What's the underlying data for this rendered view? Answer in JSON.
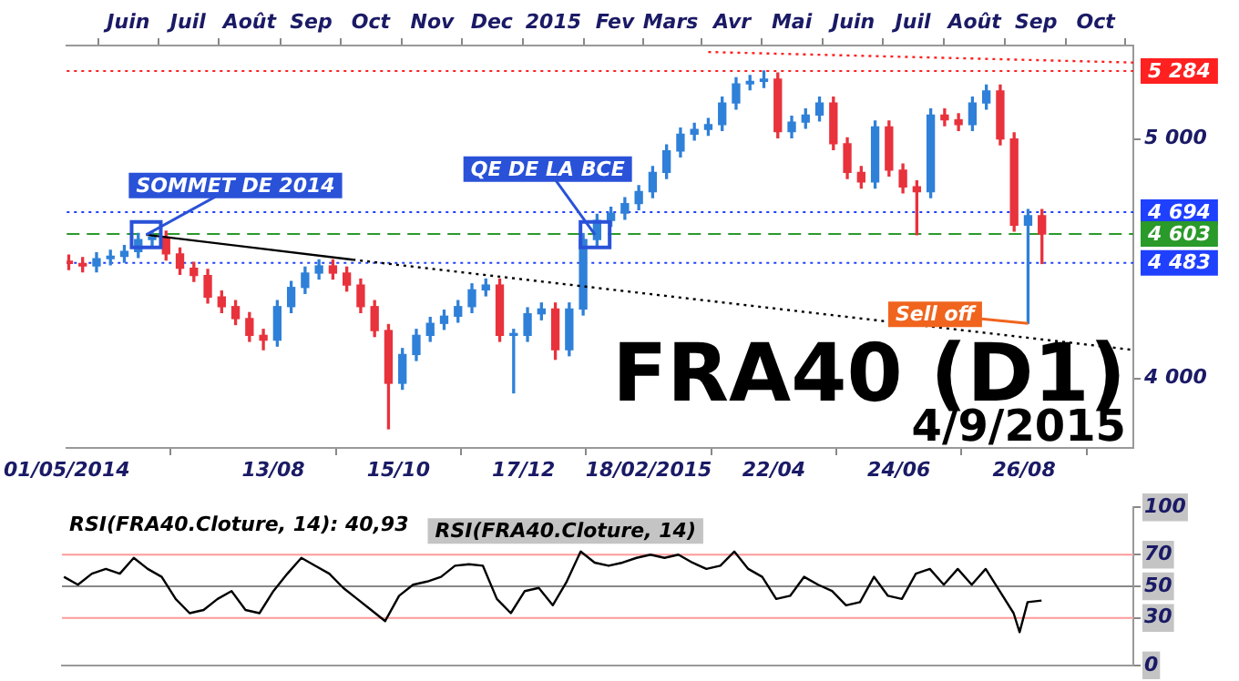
{
  "chart_data": [
    {
      "type": "candlestick",
      "title": "FRA40 (D1)",
      "subtitle": "4/9/2015",
      "x": [
        "2014-05-02",
        "2014-05-09",
        "2014-05-16",
        "2014-05-23",
        "2014-05-30",
        "2014-06-06",
        "2014-06-13",
        "2014-06-20",
        "2014-06-27",
        "2014-07-04",
        "2014-07-11",
        "2014-07-18",
        "2014-07-25",
        "2014-08-01",
        "2014-08-08",
        "2014-08-15",
        "2014-08-22",
        "2014-08-29",
        "2014-09-05",
        "2014-09-12",
        "2014-09-19",
        "2014-09-26",
        "2014-10-03",
        "2014-10-10",
        "2014-10-17",
        "2014-10-24",
        "2014-10-31",
        "2014-11-07",
        "2014-11-14",
        "2014-11-21",
        "2014-11-28",
        "2014-12-05",
        "2014-12-12",
        "2014-12-19",
        "2014-12-26",
        "2015-01-02",
        "2015-01-09",
        "2015-01-16",
        "2015-01-23",
        "2015-01-30",
        "2015-02-06",
        "2015-02-13",
        "2015-02-20",
        "2015-02-27",
        "2015-03-06",
        "2015-03-13",
        "2015-03-20",
        "2015-03-27",
        "2015-04-03",
        "2015-04-10",
        "2015-04-17",
        "2015-04-24",
        "2015-05-01",
        "2015-05-08",
        "2015-05-15",
        "2015-05-22",
        "2015-05-29",
        "2015-06-05",
        "2015-06-12",
        "2015-06-19",
        "2015-06-26",
        "2015-07-03",
        "2015-07-10",
        "2015-07-17",
        "2015-07-24",
        "2015-07-31",
        "2015-08-07",
        "2015-08-14",
        "2015-08-21",
        "2015-08-28",
        "2015-09-04"
      ],
      "ohlc": [
        [
          4490,
          4515,
          4455,
          4480
        ],
        [
          4480,
          4505,
          4445,
          4470
        ],
        [
          4470,
          4525,
          4445,
          4500
        ],
        [
          4500,
          4535,
          4475,
          4510
        ],
        [
          4510,
          4555,
          4485,
          4530
        ],
        [
          4530,
          4605,
          4505,
          4580
        ],
        [
          4580,
          4615,
          4555,
          4590
        ],
        [
          4590,
          4615,
          4495,
          4520
        ],
        [
          4520,
          4545,
          4435,
          4460
        ],
        [
          4460,
          4485,
          4405,
          4430
        ],
        [
          4430,
          4455,
          4315,
          4340
        ],
        [
          4340,
          4365,
          4275,
          4300
        ],
        [
          4300,
          4325,
          4225,
          4250
        ],
        [
          4250,
          4275,
          4155,
          4180
        ],
        [
          4180,
          4205,
          4120,
          4160
        ],
        [
          4160,
          4325,
          4135,
          4300
        ],
        [
          4300,
          4405,
          4275,
          4380
        ],
        [
          4380,
          4465,
          4355,
          4440
        ],
        [
          4440,
          4495,
          4415,
          4470
        ],
        [
          4470,
          4495,
          4415,
          4440
        ],
        [
          4440,
          4465,
          4365,
          4390
        ],
        [
          4390,
          4415,
          4275,
          4300
        ],
        [
          4300,
          4325,
          4175,
          4200
        ],
        [
          4200,
          4225,
          3790,
          3980
        ],
        [
          3980,
          4125,
          3955,
          4100
        ],
        [
          4100,
          4205,
          4075,
          4180
        ],
        [
          4180,
          4255,
          4155,
          4230
        ],
        [
          4230,
          4285,
          4205,
          4260
        ],
        [
          4260,
          4325,
          4235,
          4300
        ],
        [
          4300,
          4395,
          4275,
          4370
        ],
        [
          4370,
          4415,
          4345,
          4390
        ],
        [
          4390,
          4415,
          4155,
          4180
        ],
        [
          4180,
          4205,
          3940,
          4180
        ],
        [
          4180,
          4295,
          4155,
          4270
        ],
        [
          4270,
          4315,
          4245,
          4290
        ],
        [
          4290,
          4315,
          4080,
          4120
        ],
        [
          4120,
          4315,
          4095,
          4290
        ],
        [
          4290,
          4605,
          4265,
          4580
        ],
        [
          4580,
          4685,
          4555,
          4660
        ],
        [
          4660,
          4715,
          4635,
          4690
        ],
        [
          4690,
          4755,
          4665,
          4730
        ],
        [
          4730,
          4805,
          4705,
          4780
        ],
        [
          4780,
          4885,
          4755,
          4860
        ],
        [
          4860,
          4975,
          4835,
          4950
        ],
        [
          4950,
          5045,
          4925,
          5020
        ],
        [
          5020,
          5065,
          4995,
          5040
        ],
        [
          5040,
          5085,
          5015,
          5060
        ],
        [
          5060,
          5175,
          5035,
          5150
        ],
        [
          5150,
          5255,
          5125,
          5230
        ],
        [
          5230,
          5265,
          5205,
          5240
        ],
        [
          5240,
          5284,
          5215,
          5250
        ],
        [
          5250,
          5275,
          5005,
          5030
        ],
        [
          5030,
          5095,
          5005,
          5070
        ],
        [
          5070,
          5125,
          5045,
          5100
        ],
        [
          5100,
          5175,
          5075,
          5150
        ],
        [
          5150,
          5175,
          4955,
          4980
        ],
        [
          4980,
          5005,
          4835,
          4860
        ],
        [
          4860,
          4885,
          4795,
          4820
        ],
        [
          4820,
          5075,
          4795,
          5050
        ],
        [
          5050,
          5075,
          4845,
          4870
        ],
        [
          4870,
          4895,
          4775,
          4800
        ],
        [
          4800,
          4825,
          4600,
          4780
        ],
        [
          4780,
          5125,
          4755,
          5100
        ],
        [
          5100,
          5125,
          5055,
          5080
        ],
        [
          5080,
          5105,
          5035,
          5060
        ],
        [
          5060,
          5175,
          5035,
          5150
        ],
        [
          5150,
          5225,
          5125,
          5200
        ],
        [
          5200,
          5225,
          4975,
          5000
        ],
        [
          5000,
          5025,
          4615,
          4640
        ],
        [
          4640,
          4705,
          4230,
          4680
        ],
        [
          4680,
          4705,
          4480,
          4603
        ]
      ],
      "series": [
        {
          "type": "line",
          "color": "#000000",
          "line_style": "solid",
          "x": [
            "2014-06-10",
            "2014-09-22"
          ],
          "values": [
            4600,
            4496
          ]
        },
        {
          "type": "line",
          "color": "#000000",
          "line_style": "dotted",
          "x": [
            "2014-09-22",
            "2015-10-20"
          ],
          "values": [
            4496,
            4119
          ]
        },
        {
          "type": "line",
          "color": "#ff2020",
          "line_style": "dotted",
          "x": [
            "2015-03-20",
            "2015-10-20"
          ],
          "values": [
            5363,
            5319
          ]
        }
      ],
      "xlim": [
        "2014-05-01",
        "2015-10-20"
      ],
      "xticks": [
        {
          "value": "2014-05-01",
          "label": "01/05/2014"
        },
        {
          "value": "2014-08-13",
          "label": "13/08"
        },
        {
          "value": "2014-10-15",
          "label": "15/10"
        },
        {
          "value": "2014-12-17",
          "label": "17/12"
        },
        {
          "value": "2015-02-18",
          "label": "18/02/2015"
        },
        {
          "value": "2015-04-22",
          "label": "22/04"
        },
        {
          "value": "2015-06-24",
          "label": "24/06"
        },
        {
          "value": "2015-08-26",
          "label": "26/08"
        }
      ],
      "x2lim": [
        "2014-05-01",
        "2015-10-20"
      ],
      "x2ticks": [
        {
          "value": "2014-06-01",
          "label": "Juin"
        },
        {
          "value": "2014-07-01",
          "label": "Juil"
        },
        {
          "value": "2014-08-01",
          "label": "Août"
        },
        {
          "value": "2014-09-01",
          "label": "Sep"
        },
        {
          "value": "2014-10-01",
          "label": "Oct"
        },
        {
          "value": "2014-11-01",
          "label": "Nov"
        },
        {
          "value": "2014-12-01",
          "label": "Dec"
        },
        {
          "value": "2015-01-01",
          "label": "2015"
        },
        {
          "value": "2015-02-01",
          "label": "Fev"
        },
        {
          "value": "2015-03-01",
          "label": "Mars"
        },
        {
          "value": "2015-04-01",
          "label": "Avr"
        },
        {
          "value": "2015-05-01",
          "label": "Mai"
        },
        {
          "value": "2015-06-01",
          "label": "Juin"
        },
        {
          "value": "2015-07-01",
          "label": "Juil"
        },
        {
          "value": "2015-08-01",
          "label": "Août"
        },
        {
          "value": "2015-09-01",
          "label": "Sep"
        },
        {
          "value": "2015-10-01",
          "label": "Oct"
        }
      ],
      "ylim": [
        3710,
        5390
      ],
      "yticks": [
        {
          "value": 4000,
          "label": "4 000"
        },
        {
          "value": 5000,
          "label": "5 000"
        }
      ],
      "ref_lines": [
        {
          "axis": "y",
          "value": 5284,
          "label": "5 284",
          "color": "#ff2020",
          "line_style": "dotted"
        },
        {
          "axis": "y",
          "value": 4694,
          "label": "4 694",
          "color": "#2040ff",
          "line_style": "dotted"
        },
        {
          "axis": "y",
          "value": 4603,
          "label": "4 603",
          "color": "#2a9a2a",
          "line_style": "dashed"
        },
        {
          "axis": "y",
          "value": 4483,
          "label": "4 483",
          "color": "#2040ff",
          "line_style": "dotted"
        }
      ],
      "annotations": [
        {
          "text": "SOMMET DE 2014",
          "x": "2014-06-10",
          "y": 4600
        },
        {
          "text": "QE DE LA BCE",
          "x": "2015-01-22",
          "y": 4600
        },
        {
          "text": "Sell off",
          "x": "2015-08-28",
          "y": 4230
        }
      ]
    },
    {
      "type": "line",
      "title": "RSI(FRA40.Cloture, 14): 40,93",
      "x": [
        "2014-05-02",
        "2014-05-09",
        "2014-05-16",
        "2014-05-23",
        "2014-05-30",
        "2014-06-06",
        "2014-06-13",
        "2014-06-20",
        "2014-06-27",
        "2014-07-04",
        "2014-07-11",
        "2014-07-18",
        "2014-07-25",
        "2014-08-01",
        "2014-08-08",
        "2014-08-15",
        "2014-08-22",
        "2014-08-29",
        "2014-09-05",
        "2014-09-12",
        "2014-09-19",
        "2014-09-26",
        "2014-10-03",
        "2014-10-10",
        "2014-10-17",
        "2014-10-24",
        "2014-10-31",
        "2014-11-07",
        "2014-11-14",
        "2014-11-21",
        "2014-11-28",
        "2014-12-05",
        "2014-12-12",
        "2014-12-19",
        "2014-12-26",
        "2015-01-02",
        "2015-01-09",
        "2015-01-16",
        "2015-01-23",
        "2015-01-30",
        "2015-02-06",
        "2015-02-13",
        "2015-02-20",
        "2015-02-27",
        "2015-03-06",
        "2015-03-13",
        "2015-03-20",
        "2015-03-27",
        "2015-04-03",
        "2015-04-10",
        "2015-04-17",
        "2015-04-24",
        "2015-05-01",
        "2015-05-08",
        "2015-05-15",
        "2015-05-22",
        "2015-05-29",
        "2015-06-05",
        "2015-06-12",
        "2015-06-19",
        "2015-06-26",
        "2015-07-03",
        "2015-07-10",
        "2015-07-17",
        "2015-07-24",
        "2015-07-31",
        "2015-08-07",
        "2015-08-14",
        "2015-08-21",
        "2015-08-24",
        "2015-08-28",
        "2015-09-04"
      ],
      "series": [
        {
          "name": "RSI(FRA40.Cloture, 14)",
          "color": "#000000",
          "values": [
            56,
            51,
            58,
            61,
            58,
            68,
            61,
            56,
            42,
            33,
            35,
            42,
            47,
            35,
            33,
            47,
            58,
            68,
            63,
            58,
            49,
            42,
            35,
            28,
            44,
            51,
            53,
            56,
            63,
            64,
            63,
            42,
            33,
            47,
            49,
            38,
            53,
            72,
            65,
            63,
            65,
            68,
            70,
            68,
            70,
            65,
            61,
            63,
            72,
            61,
            56,
            42,
            44,
            56,
            51,
            47,
            38,
            40,
            56,
            44,
            42,
            58,
            61,
            51,
            61,
            51,
            61,
            47,
            33,
            21,
            40,
            41
          ]
        }
      ],
      "xlim": [
        "2014-05-01",
        "2015-10-20"
      ],
      "ylim": [
        0,
        100
      ],
      "yticks": [
        0,
        30,
        50,
        70,
        100
      ],
      "tick_labels": "y",
      "ref_lines": [
        {
          "axis": "y",
          "value": 70,
          "color": "#ff9a9a"
        },
        {
          "axis": "y",
          "value": 50,
          "color": "#888888"
        },
        {
          "axis": "y",
          "value": 30,
          "color": "#ff9a9a"
        }
      ]
    }
  ]
}
